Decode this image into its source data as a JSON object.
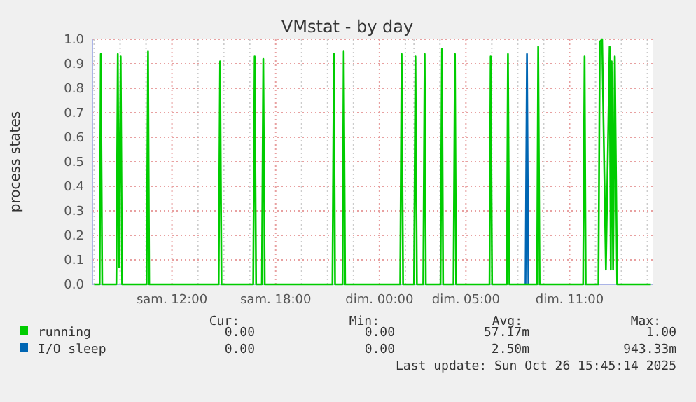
{
  "chart_data": {
    "type": "line",
    "title": "VMstat - by day",
    "ylabel": "process states",
    "xlim": [
      "2025-10-25T07:24",
      "2025-10-26T15:48"
    ],
    "ylim": [
      0,
      1.0
    ],
    "xticks": [
      {
        "value": "2025-10-25T07:30",
        "label": null
      },
      {
        "value": "2025-10-25T09:00",
        "label": null
      },
      {
        "value": "2025-10-25T10:30",
        "label": null
      },
      {
        "value": "2025-10-25T12:00",
        "label": "sam. 12:00"
      },
      {
        "value": "2025-10-25T13:30",
        "label": null
      },
      {
        "value": "2025-10-25T15:00",
        "label": null
      },
      {
        "value": "2025-10-25T16:30",
        "label": null
      },
      {
        "value": "2025-10-25T18:00",
        "label": "sam. 18:00"
      },
      {
        "value": "2025-10-25T19:30",
        "label": null
      },
      {
        "value": "2025-10-25T21:00",
        "label": null
      },
      {
        "value": "2025-10-25T22:30",
        "label": null
      },
      {
        "value": "2025-10-26T00:00",
        "label": "dim. 00:00"
      },
      {
        "value": "2025-10-26T01:30",
        "label": null
      },
      {
        "value": "2025-10-26T02:00",
        "label": null
      },
      {
        "value": "2025-10-26T03:30",
        "label": null
      },
      {
        "value": "2025-10-26T05:00",
        "label": "dim. 05:00"
      },
      {
        "value": "2025-10-26T06:30",
        "label": null
      },
      {
        "value": "2025-10-26T08:00",
        "label": null
      },
      {
        "value": "2025-10-26T09:30",
        "label": null
      },
      {
        "value": "2025-10-26T11:00",
        "label": "dim. 11:00"
      },
      {
        "value": "2025-10-26T12:30",
        "label": null
      },
      {
        "value": "2025-10-26T14:00",
        "label": null
      },
      {
        "value": "2025-10-26T15:30",
        "label": null
      }
    ],
    "yticks": [
      {
        "value": 0,
        "label": "0.0"
      },
      {
        "value": 0.1,
        "label": "0.1"
      },
      {
        "value": 0.2,
        "label": "0.2"
      },
      {
        "value": 0.3,
        "label": "0.3"
      },
      {
        "value": 0.4,
        "label": "0.4"
      },
      {
        "value": 0.5,
        "label": "0.5"
      },
      {
        "value": 0.6,
        "label": "0.6"
      },
      {
        "value": 0.7,
        "label": "0.7"
      },
      {
        "value": 0.8,
        "label": "0.8"
      },
      {
        "value": 0.9,
        "label": "0.9"
      },
      {
        "value": 1.0,
        "label": "1.0"
      }
    ],
    "grid": true,
    "legend": "bottom",
    "series": [
      {
        "name": "running",
        "color": "#00cc00",
        "x": [
          "2025-10-25T07:30",
          "2025-10-25T07:49",
          "2025-10-25T07:53",
          "2025-10-25T07:58",
          "2025-10-25T08:47",
          "2025-10-25T08:52",
          "2025-10-25T08:56",
          "2025-10-25T09:02",
          "2025-10-25T09:07",
          "2025-10-25T10:32",
          "2025-10-25T10:37",
          "2025-10-25T10:41",
          "2025-10-25T14:42",
          "2025-10-25T14:47",
          "2025-10-25T14:52",
          "2025-10-25T16:42",
          "2025-10-25T16:47",
          "2025-10-25T16:52",
          "2025-10-25T17:12",
          "2025-10-25T17:17",
          "2025-10-25T17:22",
          "2025-10-25T21:17",
          "2025-10-25T21:22",
          "2025-10-25T21:26",
          "2025-10-25T21:52",
          "2025-10-25T21:56",
          "2025-10-25T22:01",
          "2025-10-26T01:12",
          "2025-10-26T01:17",
          "2025-10-26T01:22",
          "2025-10-26T02:00",
          "2025-10-26T02:05",
          "2025-10-26T02:10",
          "2025-10-26T02:32",
          "2025-10-26T02:37",
          "2025-10-26T02:41",
          "2025-10-26T03:32",
          "2025-10-26T03:37",
          "2025-10-26T03:41",
          "2025-10-26T04:17",
          "2025-10-26T04:22",
          "2025-10-26T04:26",
          "2025-10-26T06:22",
          "2025-10-26T06:26",
          "2025-10-26T06:31",
          "2025-10-26T07:22",
          "2025-10-26T07:26",
          "2025-10-26T07:31",
          "2025-10-26T09:07",
          "2025-10-26T09:11",
          "2025-10-26T09:16",
          "2025-10-26T11:47",
          "2025-10-26T11:52",
          "2025-10-26T11:56",
          "2025-10-26T12:40",
          "2025-10-26T12:45",
          "2025-10-26T12:53",
          "2025-10-26T13:06",
          "2025-10-26T13:19",
          "2025-10-26T13:23",
          "2025-10-26T13:26",
          "2025-10-26T13:31",
          "2025-10-26T13:37",
          "2025-10-26T13:45",
          "2025-10-26T15:42"
        ],
        "values": [
          0,
          0,
          0.94,
          0,
          0,
          0.94,
          0.07,
          0.93,
          0,
          0,
          0.95,
          0,
          0,
          0.91,
          0,
          0,
          0.93,
          0,
          0,
          0.92,
          0,
          0,
          0.94,
          0,
          0,
          0.95,
          0,
          0,
          0.94,
          0,
          0,
          0.93,
          0,
          0,
          0.94,
          0,
          0,
          0.96,
          0,
          0,
          0.94,
          0,
          0,
          0.93,
          0,
          0,
          0.94,
          0,
          0,
          0.97,
          0,
          0,
          0.93,
          0,
          0,
          0.99,
          1.0,
          0.06,
          0.97,
          0.06,
          0.91,
          0.06,
          0.93,
          0,
          0
        ]
      },
      {
        "name": "I/O sleep",
        "color": "#0066b3",
        "x": [
          "2025-10-26T08:27",
          "2025-10-26T08:32",
          "2025-10-26T08:37"
        ],
        "values": [
          0,
          0.94,
          0
        ]
      }
    ],
    "annotations": [
      "Cur:",
      "Min:",
      "Avg:",
      "Max:",
      "0.00",
      "0.00",
      "57.17m",
      "1.00",
      "0.00",
      "0.00",
      "2.50m",
      "943.33m",
      "Last update: Sun Oct 26 15:45:14 2025"
    ]
  }
}
